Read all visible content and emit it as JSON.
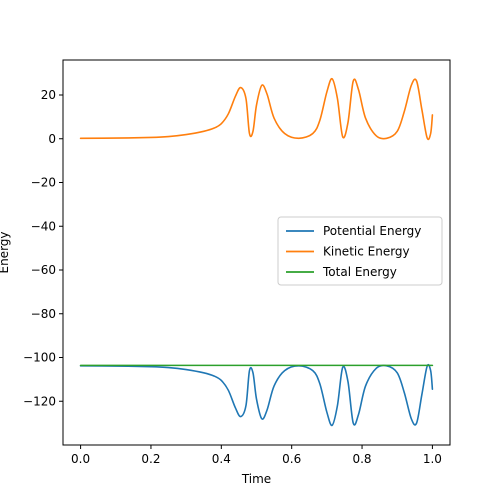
{
  "chart_data": {
    "type": "line",
    "title": "",
    "xlabel": "Time",
    "ylabel": "Energy",
    "xlim": [
      -0.05,
      1.05
    ],
    "ylim": [
      -140,
      36
    ],
    "xticks": [
      0.0,
      0.2,
      0.4,
      0.6,
      0.8,
      1.0
    ],
    "xtick_labels": [
      "0.0",
      "0.2",
      "0.4",
      "0.6",
      "0.8",
      "1.0"
    ],
    "yticks": [
      20,
      0,
      -20,
      -40,
      -60,
      -80,
      -100,
      -120
    ],
    "ytick_labels": [
      "20",
      "0",
      "−20",
      "−40",
      "−60",
      "−80",
      "−100",
      "−120"
    ],
    "grid": false,
    "legend_position": "center-right",
    "series": [
      {
        "name": "Potential Energy",
        "color": "#1f77b4",
        "x": [
          0.0,
          0.1,
          0.2,
          0.25,
          0.3,
          0.35,
          0.38,
          0.4,
          0.42,
          0.44,
          0.455,
          0.47,
          0.48,
          0.49,
          0.5,
          0.515,
          0.53,
          0.55,
          0.58,
          0.62,
          0.66,
          0.68,
          0.7,
          0.715,
          0.73,
          0.745,
          0.76,
          0.775,
          0.79,
          0.81,
          0.84,
          0.87,
          0.9,
          0.92,
          0.94,
          0.955,
          0.97,
          0.985,
          0.995,
          1.0
        ],
        "y": [
          -103.8,
          -103.9,
          -104.2,
          -104.6,
          -105.5,
          -107.0,
          -108.5,
          -110.5,
          -115.0,
          -123.0,
          -127.0,
          -122.0,
          -106.0,
          -107.0,
          -119.0,
          -128.0,
          -124.0,
          -113.0,
          -106.0,
          -103.8,
          -106.0,
          -112.0,
          -125.0,
          -131.0,
          -122.0,
          -104.5,
          -111.0,
          -130.0,
          -126.0,
          -113.0,
          -105.0,
          -103.8,
          -107.0,
          -116.0,
          -128.0,
          -130.0,
          -117.0,
          -104.0,
          -106.0,
          -114.5
        ]
      },
      {
        "name": "Kinetic Energy",
        "color": "#ff7f0e",
        "x": [
          0.0,
          0.1,
          0.2,
          0.25,
          0.3,
          0.35,
          0.38,
          0.4,
          0.42,
          0.44,
          0.455,
          0.47,
          0.48,
          0.49,
          0.5,
          0.515,
          0.53,
          0.55,
          0.58,
          0.62,
          0.66,
          0.68,
          0.7,
          0.715,
          0.73,
          0.745,
          0.76,
          0.775,
          0.79,
          0.81,
          0.84,
          0.87,
          0.9,
          0.92,
          0.94,
          0.955,
          0.97,
          0.985,
          0.995,
          1.0
        ],
        "y": [
          0.2,
          0.3,
          0.6,
          1.0,
          1.9,
          3.4,
          4.9,
          6.9,
          11.4,
          19.4,
          23.4,
          18.4,
          2.4,
          3.4,
          15.4,
          24.4,
          20.4,
          9.4,
          2.4,
          0.2,
          2.4,
          8.4,
          21.4,
          27.4,
          18.4,
          0.9,
          7.4,
          26.4,
          22.4,
          9.4,
          1.4,
          0.2,
          3.4,
          12.4,
          24.4,
          26.4,
          13.4,
          0.4,
          2.4,
          10.9
        ]
      },
      {
        "name": "Total Energy",
        "color": "#2ca02c",
        "x": [
          0.0,
          0.2,
          0.4,
          0.6,
          0.8,
          1.0
        ],
        "y": [
          -103.6,
          -103.6,
          -103.6,
          -103.6,
          -103.6,
          -103.6
        ]
      }
    ]
  }
}
